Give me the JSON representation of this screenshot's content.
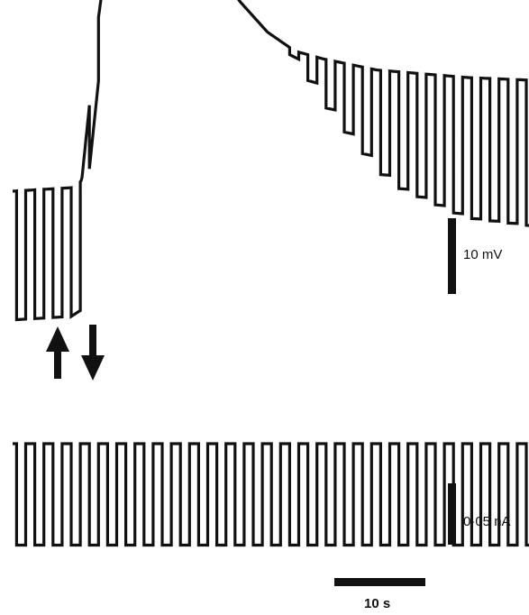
{
  "chart_data": [
    {
      "type": "line",
      "title": "",
      "description_source": "membrane potential trace",
      "scale_bar_y": {
        "label": "10 mV",
        "value": 10,
        "unit": "mV"
      },
      "scale_bar_x": {
        "label": "10 s",
        "value": 10,
        "unit": "s"
      },
      "series": [
        {
          "name": "",
          "pulse_period_s": 2.0,
          "pulse_count": 32,
          "baseline_mV": [
            [
              0.0,
              0.0
            ],
            [
              7.0,
              0.5
            ],
            [
              7.6,
              1.5
            ],
            [
              9.4,
              22.6
            ],
            [
              11.0,
              37.0
            ],
            [
              13.0,
              42.0
            ],
            [
              16.0,
              40.5
            ],
            [
              19.0,
              35.5
            ],
            [
              22.0,
              30.0
            ],
            [
              25.0,
              25.0
            ],
            [
              28.0,
              21.0
            ],
            [
              31.0,
              18.5
            ],
            [
              34.0,
              17.5
            ],
            [
              40.0,
              16.0
            ],
            [
              50.0,
              15.0
            ],
            [
              60.0,
              14.5
            ]
          ],
          "pulse_deflection_mV": [
            [
              0.0,
              -17.0
            ],
            [
              8.0,
              -17.0
            ],
            [
              8.5,
              -15.0
            ],
            [
              9.5,
              0.0
            ],
            [
              30.0,
              0.0
            ],
            [
              32.0,
              -2.0
            ],
            [
              36.0,
              -8.0
            ],
            [
              42.0,
              -15.0
            ],
            [
              50.0,
              -18.5
            ],
            [
              60.0,
              -19.5
            ]
          ]
        }
      ],
      "annotations": [
        {
          "type": "arrow-up",
          "name": "",
          "x_s": 6.0
        },
        {
          "type": "arrow-down",
          "name": "",
          "x_s": 12.0
        }
      ]
    },
    {
      "type": "line",
      "title": "",
      "description_source": "injected current trace",
      "scale_bar_y": {
        "label": "0·05 nA",
        "value": 0.05,
        "unit": "nA"
      },
      "series": [
        {
          "name": "",
          "pulse_period_s": 2.0,
          "pulse_count": 32,
          "baseline_nA": 0.0,
          "pulse_amplitude_nA": -0.075
        }
      ]
    }
  ],
  "labels": {
    "voltage_scale": "10 mV",
    "current_scale": "0·05 nA",
    "time_scale": "10 s"
  },
  "colors": {
    "ink": "#111111",
    "background": "#ffffff"
  }
}
